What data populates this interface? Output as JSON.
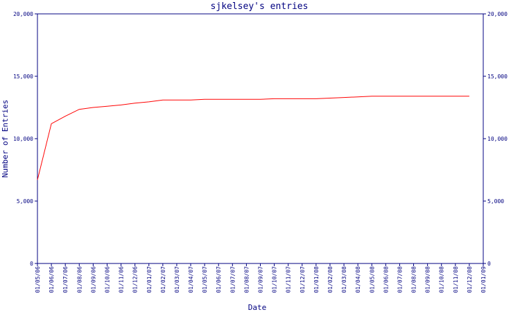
{
  "chart_data": {
    "type": "line",
    "title": "sjkelsey's entries",
    "xlabel": "Date",
    "ylabel": "Number of Entries",
    "ylim": [
      0,
      20000
    ],
    "y_ticks": [
      "0",
      "5,000",
      "10,000",
      "15,000",
      "20,000"
    ],
    "y_tick_values": [
      0,
      5000,
      10000,
      15000,
      20000
    ],
    "x_ticks": [
      "01/05/06",
      "01/06/06",
      "01/07/06",
      "01/08/06",
      "01/09/06",
      "01/10/06",
      "01/11/06",
      "01/12/06",
      "01/01/07",
      "01/02/07",
      "01/03/07",
      "01/04/07",
      "01/05/07",
      "01/06/07",
      "01/07/07",
      "01/08/07",
      "01/09/07",
      "01/10/07",
      "01/11/07",
      "01/12/07",
      "01/01/08",
      "01/02/08",
      "01/03/08",
      "01/04/08",
      "01/05/08",
      "01/06/08",
      "01/07/08",
      "01/08/08",
      "01/09/08",
      "01/10/08",
      "01/11/08",
      "01/12/08",
      "01/01/09"
    ],
    "grid": false,
    "dual_y_axis": true,
    "colors": {
      "axis": "#000080",
      "line": "#ff0000",
      "background": "#ffffff"
    },
    "series": [
      {
        "values": [
          [
            0,
            6700
          ],
          [
            1,
            11200
          ],
          [
            2,
            11800
          ],
          [
            3,
            12350
          ],
          [
            4,
            12500
          ],
          [
            5,
            12600
          ],
          [
            6,
            12700
          ],
          [
            7,
            12850
          ],
          [
            8,
            12950
          ],
          [
            9,
            13100
          ],
          [
            10,
            13100
          ],
          [
            11,
            13100
          ],
          [
            12,
            13150
          ],
          [
            13,
            13150
          ],
          [
            14,
            13150
          ],
          [
            15,
            13150
          ],
          [
            16,
            13150
          ],
          [
            17,
            13200
          ],
          [
            18,
            13200
          ],
          [
            19,
            13200
          ],
          [
            20,
            13200
          ],
          [
            21,
            13250
          ],
          [
            22,
            13300
          ],
          [
            23,
            13350
          ],
          [
            24,
            13400
          ],
          [
            25,
            13400
          ],
          [
            26,
            13400
          ],
          [
            27,
            13400
          ],
          [
            28,
            13400
          ],
          [
            29,
            13400
          ],
          [
            30,
            13400
          ],
          [
            31,
            13400
          ]
        ]
      }
    ]
  }
}
